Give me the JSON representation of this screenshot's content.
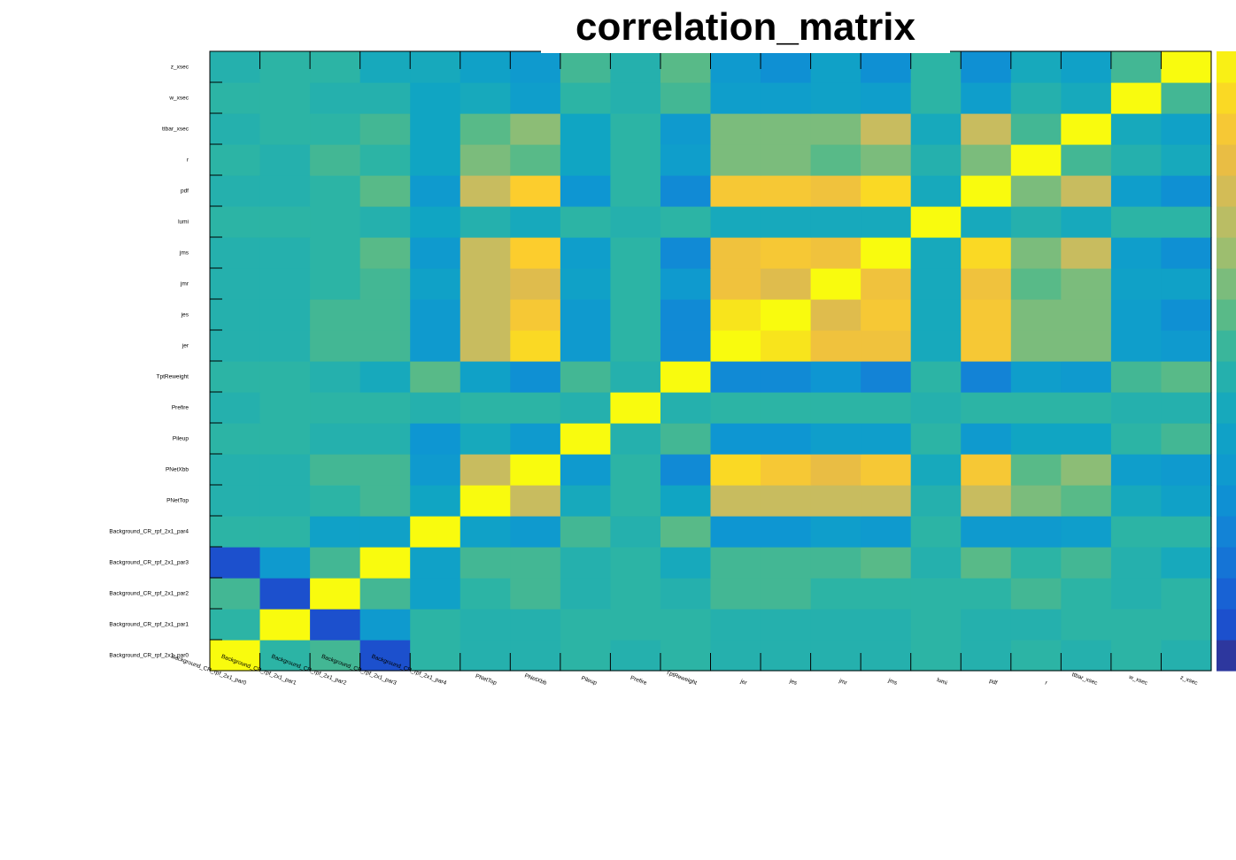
{
  "chart_data": {
    "type": "heatmap",
    "title": "correlation_matrix",
    "xlabel": "",
    "ylabel": "",
    "zlim": [
      -1,
      1
    ],
    "colormap": "parula",
    "params": [
      "Background_CR_rpf_2x1_par0",
      "Background_CR_rpf_2x1_par1",
      "Background_CR_rpf_2x1_par2",
      "Background_CR_rpf_2x1_par3",
      "Background_CR_rpf_2x1_par4",
      "PNetTop",
      "PNetXbb",
      "Pileup",
      "Prefire",
      "TptReweight",
      "jer",
      "jes",
      "jmr",
      "jms",
      "lumi",
      "pdf",
      "r",
      "ttbar_xsec",
      "w_xsec",
      "z_xsec"
    ],
    "values": [
      [
        1.0,
        0.0,
        0.08,
        -0.85,
        0.0,
        -0.05,
        -0.05,
        0.0,
        -0.05,
        0.0,
        -0.05,
        -0.05,
        -0.05,
        -0.05,
        0.0,
        -0.05,
        0.0,
        -0.05,
        0.0,
        -0.05
      ],
      [
        0.0,
        1.0,
        -0.85,
        -0.35,
        0.0,
        -0.05,
        -0.05,
        0.0,
        0.0,
        0.0,
        -0.05,
        -0.05,
        -0.05,
        -0.05,
        0.0,
        -0.05,
        -0.05,
        0.0,
        0.0,
        0.0
      ],
      [
        0.08,
        -0.85,
        1.0,
        0.08,
        -0.25,
        0.0,
        0.08,
        -0.05,
        0.0,
        -0.05,
        0.08,
        0.08,
        0.0,
        0.0,
        0.0,
        0.0,
        0.08,
        0.0,
        -0.05,
        0.0
      ],
      [
        -0.85,
        -0.35,
        0.08,
        1.0,
        -0.25,
        0.08,
        0.08,
        -0.05,
        0.0,
        -0.15,
        0.08,
        0.08,
        0.08,
        0.15,
        -0.05,
        0.15,
        0.0,
        0.08,
        -0.05,
        -0.15
      ],
      [
        0.0,
        0.0,
        -0.25,
        -0.25,
        1.0,
        -0.25,
        -0.35,
        0.08,
        -0.05,
        0.15,
        -0.4,
        -0.4,
        -0.3,
        -0.35,
        0.0,
        -0.35,
        -0.35,
        -0.3,
        0.0,
        0.0
      ],
      [
        -0.05,
        -0.05,
        0.0,
        0.08,
        -0.2,
        1.0,
        0.5,
        -0.15,
        0.0,
        -0.2,
        0.5,
        0.5,
        0.5,
        0.5,
        -0.05,
        0.5,
        0.25,
        0.15,
        -0.15,
        -0.25
      ],
      [
        -0.05,
        -0.05,
        0.08,
        0.08,
        -0.35,
        0.5,
        1.0,
        -0.35,
        0.0,
        -0.5,
        0.85,
        0.75,
        0.65,
        0.75,
        -0.15,
        0.75,
        0.15,
        0.3,
        -0.3,
        -0.35
      ],
      [
        0.0,
        0.0,
        -0.05,
        -0.05,
        -0.4,
        -0.15,
        -0.35,
        1.0,
        -0.05,
        0.08,
        -0.4,
        -0.4,
        -0.3,
        -0.3,
        0.0,
        -0.35,
        -0.2,
        -0.2,
        0.0,
        0.08
      ],
      [
        -0.05,
        0.0,
        0.0,
        0.0,
        -0.05,
        0.0,
        0.0,
        -0.05,
        1.0,
        -0.05,
        0.0,
        0.0,
        0.0,
        0.0,
        -0.05,
        0.0,
        0.0,
        0.0,
        -0.05,
        -0.05
      ],
      [
        0.0,
        0.0,
        -0.05,
        -0.15,
        0.15,
        -0.25,
        -0.45,
        0.08,
        -0.05,
        1.0,
        -0.5,
        -0.5,
        -0.4,
        -0.55,
        0.0,
        -0.55,
        -0.3,
        -0.35,
        0.08,
        0.15
      ],
      [
        -0.05,
        -0.05,
        0.08,
        0.08,
        -0.35,
        0.5,
        0.85,
        -0.35,
        0.0,
        -0.5,
        1.0,
        0.9,
        0.7,
        0.7,
        -0.15,
        0.75,
        0.25,
        0.25,
        -0.3,
        -0.35
      ],
      [
        -0.05,
        -0.05,
        0.08,
        0.08,
        -0.35,
        0.5,
        0.75,
        -0.35,
        0.0,
        -0.5,
        0.9,
        1.0,
        0.6,
        0.75,
        -0.15,
        0.75,
        0.25,
        0.25,
        -0.3,
        -0.45
      ],
      [
        -0.05,
        -0.05,
        0.0,
        0.08,
        -0.25,
        0.5,
        0.6,
        -0.25,
        0.0,
        -0.35,
        0.7,
        0.6,
        1.0,
        0.7,
        -0.15,
        0.7,
        0.15,
        0.25,
        -0.25,
        -0.25
      ],
      [
        -0.05,
        -0.05,
        0.0,
        0.15,
        -0.35,
        0.5,
        0.8,
        -0.3,
        0.0,
        -0.5,
        0.7,
        0.75,
        0.7,
        1.0,
        -0.15,
        0.85,
        0.25,
        0.5,
        -0.3,
        -0.45
      ],
      [
        0.0,
        0.0,
        0.0,
        -0.05,
        -0.2,
        -0.05,
        -0.15,
        0.0,
        -0.05,
        0.0,
        -0.15,
        -0.15,
        -0.15,
        -0.15,
        1.0,
        -0.15,
        -0.05,
        -0.15,
        0.0,
        0.0
      ],
      [
        -0.05,
        -0.05,
        0.0,
        0.15,
        -0.35,
        0.5,
        0.8,
        -0.4,
        0.0,
        -0.5,
        0.75,
        0.75,
        0.7,
        0.85,
        -0.15,
        1.0,
        0.25,
        0.5,
        -0.3,
        -0.45
      ],
      [
        0.0,
        -0.05,
        0.08,
        0.0,
        -0.2,
        0.25,
        0.15,
        -0.2,
        0.0,
        -0.3,
        0.25,
        0.25,
        0.15,
        0.25,
        -0.05,
        0.25,
        1.0,
        0.08,
        -0.05,
        -0.15
      ],
      [
        -0.05,
        0.0,
        0.0,
        0.08,
        -0.2,
        0.15,
        0.3,
        -0.2,
        0.0,
        -0.35,
        0.25,
        0.25,
        0.25,
        0.5,
        -0.15,
        0.5,
        0.08,
        1.0,
        -0.15,
        -0.25
      ],
      [
        0.0,
        0.0,
        -0.05,
        -0.05,
        -0.2,
        -0.15,
        -0.3,
        0.0,
        -0.05,
        0.08,
        -0.3,
        -0.3,
        -0.25,
        -0.3,
        0.0,
        -0.3,
        -0.05,
        -0.15,
        1.0,
        0.08
      ],
      [
        -0.05,
        0.0,
        0.0,
        -0.15,
        -0.15,
        -0.25,
        -0.35,
        0.08,
        -0.05,
        0.15,
        -0.35,
        -0.45,
        -0.25,
        -0.45,
        0.0,
        -0.45,
        -0.15,
        -0.25,
        0.08,
        1.0
      ]
    ]
  }
}
